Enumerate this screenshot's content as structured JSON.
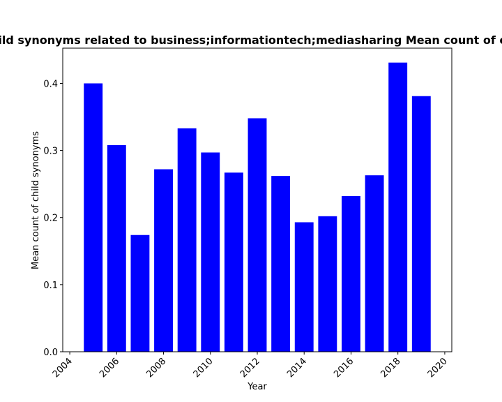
{
  "chart_data": {
    "type": "bar",
    "title": "Mean count of child synonyms related to business;informationtech;mediasharing Mean count of child synonyms in",
    "xlabel": "Year",
    "ylabel": "Mean count of child synonyms",
    "x": [
      2005,
      2006,
      2007,
      2008,
      2009,
      2010,
      2011,
      2012,
      2013,
      2014,
      2015,
      2016,
      2017,
      2018,
      2019
    ],
    "values": [
      0.4,
      0.308,
      0.174,
      0.272,
      0.333,
      0.297,
      0.267,
      0.348,
      0.262,
      0.193,
      0.202,
      0.232,
      0.263,
      0.431,
      0.381
    ],
    "xlim": [
      2003.7,
      2020.3
    ],
    "ylim": [
      0,
      0.4525
    ],
    "xticks": [
      2004,
      2006,
      2008,
      2010,
      2012,
      2014,
      2016,
      2018,
      2020
    ],
    "yticks": [
      0.0,
      0.1,
      0.2,
      0.3,
      0.4
    ],
    "bar_color": "#0000ff",
    "grid": false
  }
}
